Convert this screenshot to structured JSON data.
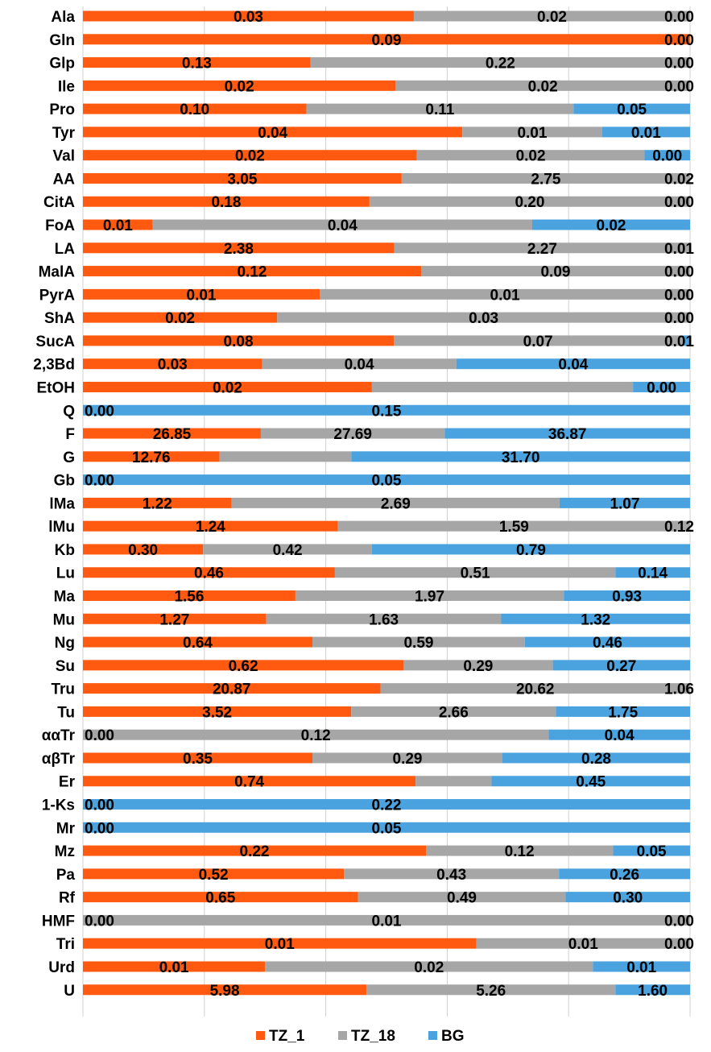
{
  "chart_data": {
    "type": "bar",
    "orientation": "horizontal",
    "stacking": "percent",
    "grid": true,
    "legend_position": "bottom",
    "categories": [
      "Ala",
      "Gln",
      "Glp",
      "Ile",
      "Pro",
      "Tyr",
      "Val",
      "AA",
      "CitA",
      "FoA",
      "LA",
      "MalA",
      "PyrA",
      "ShA",
      "SucA",
      "2,3Bd",
      "EtOH",
      "Q",
      "F",
      "G",
      "Gb",
      "lMa",
      "lMu",
      "Kb",
      "Lu",
      "Ma",
      "Mu",
      "Ng",
      "Su",
      "Tru",
      "Tu",
      "ααTr",
      "αβTr",
      "Er",
      "1-Ks",
      "Mr",
      "Mz",
      "Pa",
      "Rf",
      "HMF",
      "Tri",
      "Urd",
      "U"
    ],
    "series": [
      {
        "name": "TZ_1",
        "color": "#ff5a0f",
        "values": [
          0.03,
          0.09,
          0.13,
          0.02,
          0.1,
          0.04,
          0.02,
          3.05,
          0.18,
          0.01,
          2.38,
          0.12,
          0.01,
          0.02,
          0.08,
          0.03,
          0.02,
          0.0,
          26.85,
          12.76,
          0.0,
          1.22,
          1.24,
          0.3,
          0.46,
          1.56,
          1.27,
          0.64,
          0.62,
          20.87,
          3.52,
          0.0,
          0.35,
          0.74,
          0.0,
          0.0,
          0.22,
          0.52,
          0.65,
          0.0,
          0.01,
          0.01,
          5.98
        ],
        "labels": [
          "0.03",
          "0.09",
          "0.13",
          "0.02",
          "0.10",
          "0.04",
          "0.02",
          "3.05",
          "0.18",
          "0.01",
          "2.38",
          "0.12",
          "0.01",
          "0.02",
          "0.08",
          "0.03",
          "0.02",
          "0.00",
          "26.85",
          "12.76",
          "0.00",
          "1.22",
          "1.24",
          "0.30",
          "0.46",
          "1.56",
          "1.27",
          "0.64",
          "0.62",
          "20.87",
          "3.52",
          "0.00",
          "0.35",
          "0.74",
          "0.00",
          "0.00",
          "0.22",
          "0.52",
          "0.65",
          "0.00",
          "0.01",
          "0.01",
          "5.98"
        ],
        "shown_fraction": [
          0.545,
          1.0,
          0.375,
          0.515,
          0.368,
          0.625,
          0.55,
          0.525,
          0.472,
          0.115,
          0.513,
          0.557,
          0.39,
          0.32,
          0.512,
          0.295,
          0.476,
          0.0,
          0.293,
          0.225,
          0.0,
          0.245,
          0.42,
          0.198,
          0.415,
          0.35,
          0.302,
          0.378,
          0.528,
          0.49,
          0.442,
          0.0,
          0.378,
          0.548,
          0.0,
          0.0,
          0.565,
          0.43,
          0.453,
          0.0,
          0.648,
          0.3,
          0.467
        ]
      },
      {
        "name": "TZ_18",
        "color": "#a6a6a6",
        "values": [
          0.02,
          null,
          0.22,
          0.02,
          0.11,
          0.01,
          0.02,
          2.75,
          0.2,
          0.04,
          2.27,
          0.09,
          0.01,
          0.03,
          0.07,
          0.04,
          null,
          null,
          27.69,
          null,
          null,
          2.69,
          1.59,
          0.42,
          0.51,
          1.97,
          1.63,
          0.59,
          0.29,
          20.62,
          2.66,
          0.12,
          0.29,
          null,
          null,
          null,
          0.12,
          0.43,
          0.49,
          0.01,
          0.01,
          0.02,
          5.26
        ],
        "labels": [
          "0.02",
          "",
          "0.22",
          "0.02",
          "0.11",
          "0.01",
          "0.02",
          "2.75",
          "0.20",
          "0.04",
          "2.27",
          "0.09",
          "0.01",
          "0.03",
          "0.07",
          "0.04",
          "",
          "",
          "27.69",
          "",
          "",
          "2.69",
          "1.59",
          "0.42",
          "0.51",
          "1.97",
          "1.63",
          "0.59",
          "0.29",
          "20.62",
          "2.66",
          "0.12",
          "0.29",
          "",
          "",
          "",
          "0.12",
          "0.43",
          "0.49",
          "0.01",
          "0.01",
          "0.02",
          "5.26"
        ],
        "shown_fraction": [
          0.455,
          0.0,
          0.625,
          0.485,
          0.44,
          0.23,
          0.375,
          0.475,
          0.528,
          0.625,
          0.487,
          0.443,
          0.61,
          0.68,
          0.475,
          0.32,
          0.43,
          0.0,
          0.303,
          0.217,
          0.0,
          0.54,
          0.58,
          0.278,
          0.462,
          0.442,
          0.387,
          0.35,
          0.246,
          0.51,
          0.337,
          0.767,
          0.313,
          0.125,
          0.0,
          0.0,
          0.308,
          0.354,
          0.342,
          1.0,
          0.352,
          0.54,
          0.41
        ]
      },
      {
        "name": "BG",
        "color": "#4aa3df",
        "values": [
          0.0,
          0.0,
          0.0,
          0.0,
          0.05,
          0.01,
          0.0,
          0.02,
          0.0,
          0.02,
          0.01,
          0.0,
          0.0,
          0.0,
          0.01,
          0.04,
          0.0,
          0.15,
          36.87,
          31.7,
          0.05,
          1.07,
          0.12,
          0.79,
          0.14,
          0.93,
          1.32,
          0.46,
          0.27,
          1.06,
          1.75,
          0.04,
          0.28,
          0.45,
          0.22,
          0.05,
          0.05,
          0.26,
          0.3,
          0.0,
          0.0,
          0.01,
          1.6
        ],
        "labels": [
          "0.00",
          "0.00",
          "0.00",
          "0.00",
          "0.05",
          "0.01",
          "0.00",
          "0.02",
          "0.00",
          "0.02",
          "0.01",
          "0.00",
          "0.00",
          "0.00",
          "0.01",
          "0.04",
          "0.00",
          "0.15",
          "36.87",
          "31.70",
          "0.05",
          "1.07",
          "0.12",
          "0.79",
          "0.14",
          "0.93",
          "1.32",
          "0.46",
          "0.27",
          "1.06",
          "1.75",
          "0.04",
          "0.28",
          "0.45",
          "0.22",
          "0.05",
          "0.05",
          "0.26",
          "0.30",
          "0.00",
          "0.00",
          "0.01",
          "1.60"
        ],
        "shown_fraction": [
          0.0,
          0.0,
          0.0,
          0.0,
          0.192,
          0.145,
          0.075,
          0.0,
          0.0,
          0.26,
          0.0,
          0.0,
          0.0,
          0.0,
          0.013,
          0.385,
          0.094,
          1.0,
          0.404,
          0.558,
          1.0,
          0.215,
          0.0,
          0.524,
          0.123,
          0.208,
          0.311,
          0.272,
          0.226,
          0.0,
          0.221,
          0.233,
          0.309,
          0.327,
          1.0,
          1.0,
          0.127,
          0.216,
          0.205,
          0.0,
          0.0,
          0.16,
          0.123
        ]
      }
    ],
    "xlim": [
      0,
      1
    ]
  }
}
